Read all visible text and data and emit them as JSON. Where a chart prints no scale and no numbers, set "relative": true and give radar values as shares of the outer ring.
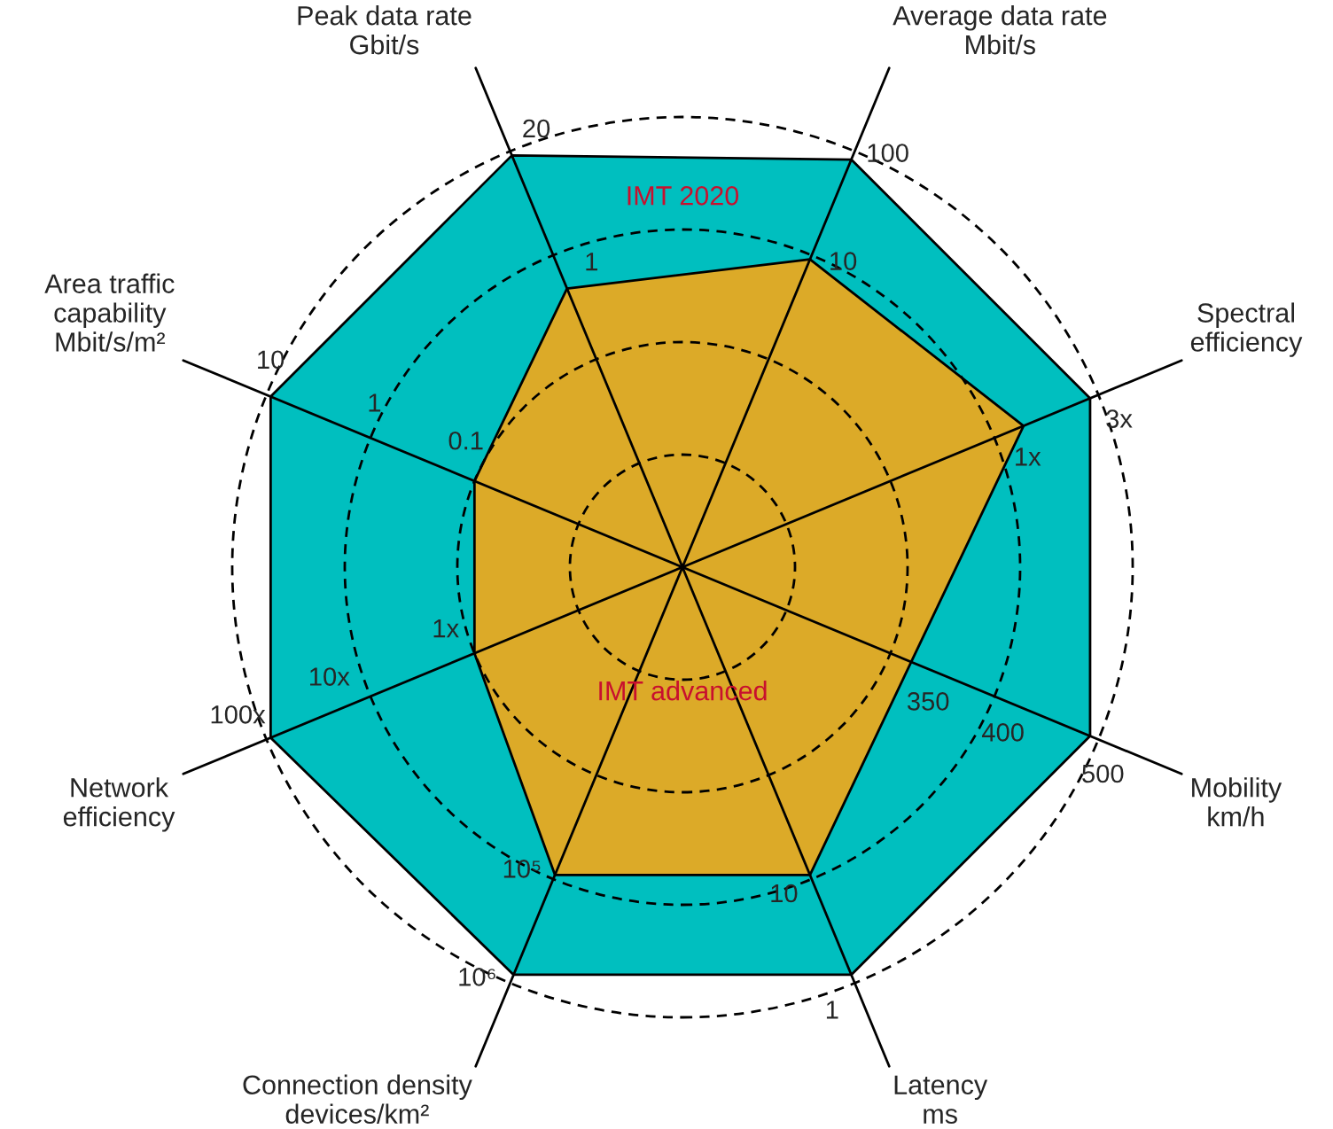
{
  "chart_data": {
    "type": "radar",
    "relative": true,
    "grid": true,
    "categories": [
      "Average data rate\nMbit/s",
      "Spectral\nefficiency",
      "Mobility\nkm/h",
      "Latency\nms",
      "Connection density\ndevices/km²",
      "Network\nefficiency",
      "Area traffic\ncapability\nMbit/s/m²",
      "Peak data rate\nGbit/s"
    ],
    "series": [
      {
        "name": "IMT 2020",
        "color": "#00bfbf",
        "values": [
          0.98,
          0.98,
          0.98,
          0.98,
          0.98,
          0.99,
          0.99,
          0.99
        ]
      },
      {
        "name": "IMT advanced",
        "color": "#dcaa28",
        "values": [
          0.74,
          0.82,
          0.55,
          0.74,
          0.74,
          0.5,
          0.5,
          0.67
        ]
      }
    ],
    "annotations": [
      {
        "text": "100",
        "x": "Average data rate\nMbit/s"
      },
      {
        "text": "10",
        "x": "Average data rate\nMbit/s"
      },
      {
        "text": "3x",
        "x": "Spectral\nefficiency"
      },
      {
        "text": "1x",
        "x": "Spectral\nefficiency"
      },
      {
        "text": "500",
        "x": "Mobility\nkm/h"
      },
      {
        "text": "400",
        "x": "Mobility\nkm/h"
      },
      {
        "text": "350",
        "x": "Mobility\nkm/h"
      },
      {
        "text": "1",
        "x": "Latency\nms"
      },
      {
        "text": "10",
        "x": "Latency\nms"
      },
      {
        "text": "10⁶",
        "x": "Connection density\ndevices/km²"
      },
      {
        "text": "10⁵",
        "x": "Connection density\ndevices/km²"
      },
      {
        "text": "100x",
        "x": "Network\nefficiency"
      },
      {
        "text": "10x",
        "x": "Network\nefficiency"
      },
      {
        "text": "1x",
        "x": "Network\nefficiency"
      },
      {
        "text": "10",
        "x": "Area traffic\ncapability\nMbit/s/m²"
      },
      {
        "text": "1",
        "x": "Area traffic\ncapability\nMbit/s/m²"
      },
      {
        "text": "0.1",
        "x": "Area traffic\ncapability\nMbit/s/m²"
      },
      {
        "text": "20",
        "x": "Peak data rate\nGbit/s"
      },
      {
        "text": "1",
        "x": "Peak data rate\nGbit/s"
      }
    ]
  }
}
